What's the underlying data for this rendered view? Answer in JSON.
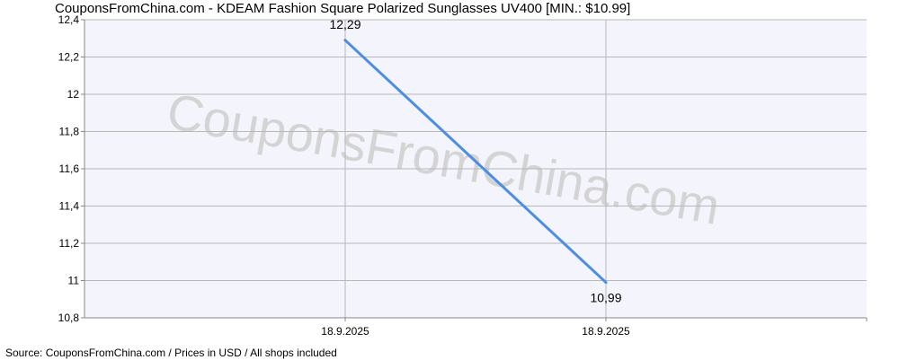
{
  "title": "CouponsFromChina.com - KDEAM Fashion Square Polarized Sunglasses UV400 [MIN.: $10.99]",
  "source": "Source:  CouponsFromChina.com / Prices in USD / All shops included",
  "watermark": "CouponsFromChina.com",
  "colors": {
    "line": "#4a8ee6",
    "grid": "#b8b8b8",
    "plot_bg": "#f4f4fc",
    "axis": "#888888"
  },
  "chart_data": {
    "type": "line",
    "title": "CouponsFromChina.com - KDEAM Fashion Square Polarized Sunglasses UV400 [MIN.: $10.99]",
    "xlabel": "",
    "ylabel": "",
    "ylim": [
      10.8,
      12.4
    ],
    "y_ticks": [
      "10,8",
      "11",
      "11,2",
      "11,4",
      "11,6",
      "11,8",
      "12",
      "12,2",
      "12,4"
    ],
    "y_tick_values": [
      10.8,
      11.0,
      11.2,
      11.4,
      11.6,
      11.8,
      12.0,
      12.2,
      12.4
    ],
    "x_ticks": [
      "18.9.2025",
      "18.9.2025"
    ],
    "grid": true,
    "legend": "none",
    "series": [
      {
        "points": [
          {
            "x": "18.9.2025",
            "y": 12.29,
            "label": "12,29"
          },
          {
            "x": "18.9.2025",
            "y": 10.99,
            "label": "10,99"
          }
        ]
      }
    ]
  }
}
